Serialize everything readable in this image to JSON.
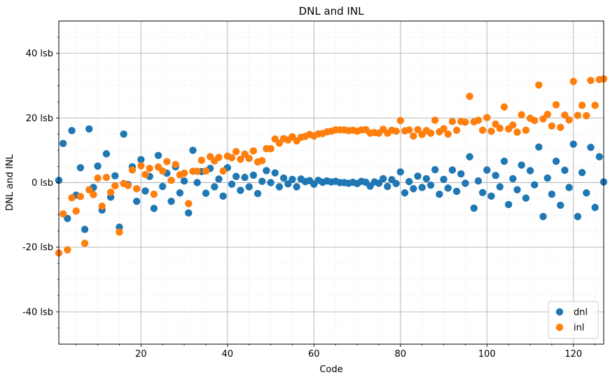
{
  "chart_data": {
    "type": "scatter",
    "title": "DNL and INL",
    "xlabel": "Code",
    "ylabel": "DNL and INL",
    "xlim": [
      1,
      127
    ],
    "ylim": [
      -50,
      50
    ],
    "x_ticks": [
      20,
      40,
      60,
      80,
      100,
      120
    ],
    "x_tick_labels": [
      "20",
      "40",
      "60",
      "80",
      "100",
      "120"
    ],
    "y_ticks": [
      40,
      20,
      0,
      -20,
      -40
    ],
    "y_tick_labels": [
      "40 lsb",
      "20 lsb",
      "0 lsb",
      "-20 lsb",
      "-40 lsb"
    ],
    "grid": true,
    "minor_grid": true,
    "legend_position": "bottom-right",
    "series": [
      {
        "name": "dnl",
        "color": "#1f77b4",
        "x": [
          1,
          2,
          3,
          4,
          5,
          6,
          7,
          8,
          9,
          10,
          11,
          12,
          13,
          14,
          15,
          16,
          17,
          18,
          19,
          20,
          21,
          22,
          23,
          24,
          25,
          26,
          27,
          28,
          29,
          30,
          31,
          32,
          33,
          34,
          35,
          36,
          37,
          38,
          39,
          40,
          41,
          42,
          43,
          44,
          45,
          46,
          47,
          48,
          49,
          50,
          51,
          52,
          53,
          54,
          55,
          56,
          57,
          58,
          59,
          60,
          61,
          62,
          63,
          64,
          65,
          66,
          67,
          68,
          69,
          70,
          71,
          72,
          73,
          74,
          75,
          76,
          77,
          78,
          79,
          80,
          81,
          82,
          83,
          84,
          85,
          86,
          87,
          88,
          89,
          90,
          91,
          92,
          93,
          94,
          95,
          96,
          97,
          98,
          99,
          100,
          101,
          102,
          103,
          104,
          105,
          106,
          107,
          108,
          109,
          110,
          111,
          112,
          113,
          114,
          115,
          116,
          117,
          118,
          119,
          120,
          121,
          122,
          123,
          124,
          125,
          126,
          127
        ],
        "y": [
          0.7,
          12.1,
          -11.1,
          16.1,
          -3.9,
          4.6,
          -14.5,
          16.6,
          -1.5,
          5.1,
          -8.5,
          8.9,
          -4.5,
          2.1,
          -13.8,
          15.0,
          -0.6,
          4.9,
          -5.8,
          7.1,
          -2.6,
          1.9,
          -8.0,
          8.4,
          -1.2,
          2.9,
          -5.8,
          4.9,
          -3.2,
          0.5,
          -9.4,
          10.0,
          0.0,
          3.4,
          -3.3,
          4.4,
          -1.3,
          1.1,
          -4.2,
          4.6,
          -0.5,
          1.9,
          -2.4,
          1.6,
          -1.3,
          2.3,
          -3.4,
          0.4,
          3.7,
          0.0,
          3.0,
          -1.3,
          1.4,
          -0.4,
          1.0,
          -1.3,
          1.1,
          0.3,
          0.6,
          -0.5,
          0.7,
          0.1,
          0.5,
          0.2,
          0.4,
          0.0,
          0.0,
          -0.2,
          0.1,
          -0.3,
          0.4,
          0.1,
          -1.1,
          0.2,
          -0.2,
          1.2,
          -1.2,
          0.9,
          -0.3,
          3.3,
          -3.2,
          0.3,
          -1.9,
          2.0,
          -1.5,
          1.2,
          -0.8,
          4.0,
          -3.6,
          1.0,
          -1.7,
          3.9,
          -2.7,
          2.7,
          -0.2,
          8.0,
          -7.9,
          0.5,
          -3.1,
          3.9,
          -4.2,
          2.2,
          -1.3,
          6.6,
          -6.8,
          1.2,
          -2.2,
          5.4,
          -4.8,
          3.7,
          -0.7,
          11.0,
          -10.5,
          1.4,
          -3.6,
          6.6,
          -7.0,
          3.8,
          -1.5,
          11.9,
          -10.5,
          3.1,
          -3.2,
          10.9,
          -7.7,
          8.0,
          0.2
        ]
      },
      {
        "name": "inl",
        "color": "#ff7f0e",
        "x": [
          1,
          2,
          3,
          4,
          5,
          6,
          7,
          8,
          9,
          10,
          11,
          12,
          13,
          14,
          15,
          16,
          17,
          18,
          19,
          20,
          21,
          22,
          23,
          24,
          25,
          26,
          27,
          28,
          29,
          30,
          31,
          32,
          33,
          34,
          35,
          36,
          37,
          38,
          39,
          40,
          41,
          42,
          43,
          44,
          45,
          46,
          47,
          48,
          49,
          50,
          51,
          52,
          53,
          54,
          55,
          56,
          57,
          58,
          59,
          60,
          61,
          62,
          63,
          64,
          65,
          66,
          67,
          68,
          69,
          70,
          71,
          72,
          73,
          74,
          75,
          76,
          77,
          78,
          79,
          80,
          81,
          82,
          83,
          84,
          85,
          86,
          87,
          88,
          89,
          90,
          91,
          92,
          93,
          94,
          95,
          96,
          97,
          98,
          99,
          100,
          101,
          102,
          103,
          104,
          105,
          106,
          107,
          108,
          109,
          110,
          111,
          112,
          113,
          114,
          115,
          116,
          117,
          118,
          119,
          120,
          121,
          122,
          123,
          124,
          125,
          126,
          127
        ],
        "y": [
          -21.8,
          -9.7,
          -20.8,
          -4.7,
          -8.8,
          -4.3,
          -18.8,
          -2.2,
          -3.7,
          1.4,
          -7.3,
          1.6,
          -3.0,
          -1.0,
          -15.3,
          -0.3,
          -0.9,
          3.9,
          -1.9,
          5.2,
          2.5,
          4.4,
          -3.6,
          4.8,
          3.6,
          6.5,
          0.7,
          5.6,
          2.4,
          2.9,
          -6.5,
          3.5,
          3.5,
          6.9,
          3.6,
          8.0,
          6.7,
          7.8,
          3.6,
          8.2,
          7.7,
          9.6,
          7.2,
          8.8,
          7.5,
          9.8,
          6.4,
          6.8,
          10.5,
          10.5,
          13.5,
          12.2,
          13.6,
          13.2,
          14.2,
          12.9,
          14.0,
          14.3,
          14.9,
          14.4,
          15.1,
          15.2,
          15.7,
          15.9,
          16.3,
          16.3,
          16.3,
          16.1,
          16.2,
          15.9,
          16.3,
          16.4,
          15.3,
          15.5,
          15.3,
          16.5,
          15.3,
          16.2,
          15.9,
          19.2,
          16.0,
          16.3,
          14.4,
          16.4,
          14.9,
          16.1,
          15.3,
          19.3,
          15.7,
          16.7,
          15.0,
          18.9,
          16.2,
          18.9,
          18.7,
          26.7,
          18.8,
          19.3,
          16.2,
          20.1,
          15.9,
          18.1,
          16.8,
          23.4,
          16.6,
          17.8,
          15.6,
          21.0,
          16.2,
          19.9,
          19.2,
          30.2,
          19.7,
          21.1,
          17.5,
          24.1,
          17.1,
          20.9,
          19.4,
          31.3,
          20.8,
          23.9,
          20.7,
          31.6,
          23.9,
          31.9,
          32.1
        ]
      }
    ]
  }
}
